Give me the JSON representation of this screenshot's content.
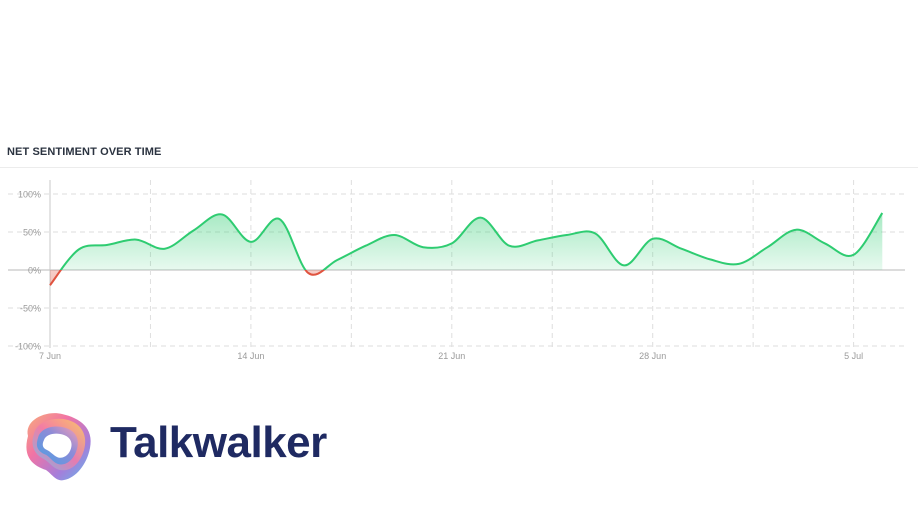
{
  "chart_data": {
    "type": "area",
    "title": "NET SENTIMENT OVER TIME",
    "ylim": [
      -100,
      100
    ],
    "y_ticks": [
      {
        "value": 100,
        "label": "100%"
      },
      {
        "value": 50,
        "label": "50%"
      },
      {
        "value": 0,
        "label": "0%"
      },
      {
        "value": -50,
        "label": "-50%"
      },
      {
        "value": -100,
        "label": "-100%"
      }
    ],
    "x_ticks": [
      {
        "day": 0,
        "label": "7 Jun"
      },
      {
        "day": 7,
        "label": "14 Jun"
      },
      {
        "day": 14,
        "label": "21 Jun"
      },
      {
        "day": 21,
        "label": "28 Jun"
      },
      {
        "day": 28,
        "label": "5 Jul"
      }
    ],
    "grid": true,
    "positive_color": "#2ecc71",
    "negative_color": "#e0533f",
    "series": [
      {
        "x": [
          "7 Jun",
          "8 Jun",
          "9 Jun",
          "10 Jun",
          "11 Jun",
          "12 Jun",
          "13 Jun",
          "14 Jun",
          "15 Jun",
          "16 Jun",
          "17 Jun",
          "18 Jun",
          "19 Jun",
          "20 Jun",
          "21 Jun",
          "22 Jun",
          "23 Jun",
          "24 Jun",
          "25 Jun",
          "26 Jun",
          "27 Jun",
          "28 Jun",
          "29 Jun",
          "30 Jun",
          "1 Jul",
          "2 Jul",
          "3 Jul",
          "4 Jul",
          "5 Jul",
          "6 Jul"
        ],
        "values": [
          -20,
          27,
          33,
          40,
          28,
          52,
          73,
          37,
          67,
          -4,
          13,
          32,
          46,
          30,
          35,
          69,
          32,
          39,
          46,
          48,
          6,
          41,
          28,
          14,
          8,
          30,
          53,
          35,
          20,
          75
        ]
      }
    ]
  },
  "brand": {
    "name": "Talkwalker",
    "logo_icon": "talkwalker-logo-icon"
  }
}
